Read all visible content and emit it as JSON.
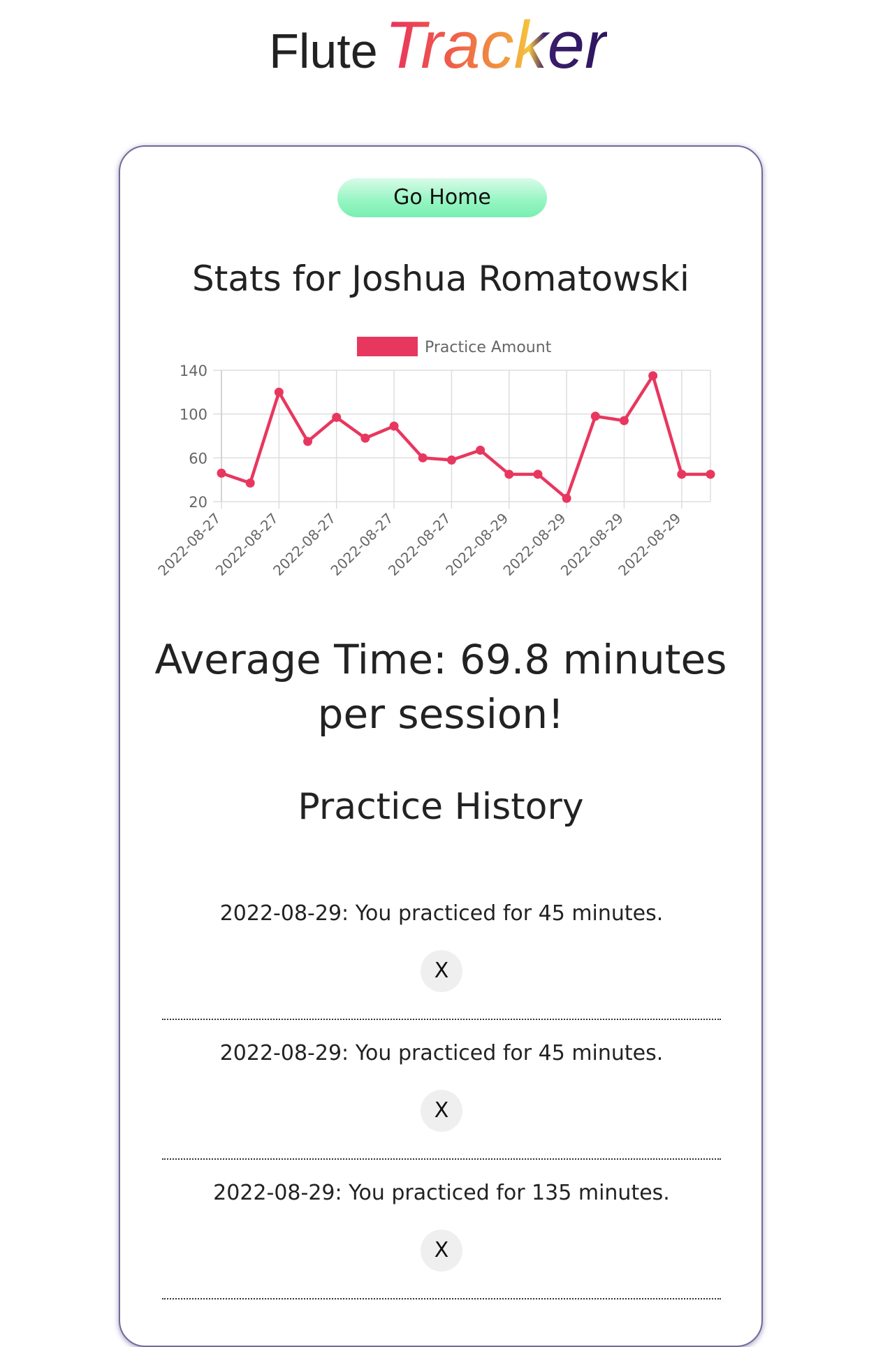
{
  "brand": {
    "part1": "Flute",
    "part2": "Tracker"
  },
  "nav": {
    "go_home_label": "Go Home"
  },
  "stats": {
    "title": "Stats for Joshua Romatowski",
    "average": "Average Time: 69.8 minutes per session!"
  },
  "chart_data": {
    "type": "line",
    "legend": [
      "Practice Amount"
    ],
    "legend_position": "top",
    "grid": true,
    "x": [
      "2022-08-27",
      "2022-08-27",
      "2022-08-27",
      "2022-08-27",
      "2022-08-27",
      "2022-08-27",
      "2022-08-27",
      "2022-08-27",
      "2022-08-27",
      "2022-08-27",
      "2022-08-29",
      "2022-08-29",
      "2022-08-29",
      "2022-08-29",
      "2022-08-29",
      "2022-08-29",
      "2022-08-29",
      "2022-08-29"
    ],
    "x_tick_labels": [
      "2022-08-27",
      "2022-08-27",
      "2022-08-27",
      "2022-08-27",
      "2022-08-27",
      "2022-08-29",
      "2022-08-29",
      "2022-08-29",
      "2022-08-29"
    ],
    "series": [
      {
        "name": "Practice Amount",
        "color": "#e8375f",
        "values": [
          46,
          37,
          120,
          75,
          97,
          78,
          89,
          60,
          58,
          67,
          45,
          45,
          23,
          98,
          94,
          135,
          45,
          45
        ]
      }
    ],
    "y_ticks": [
      20,
      60,
      100,
      140
    ],
    "ylim": [
      20,
      140
    ]
  },
  "history": {
    "title": "Practice History",
    "entries": [
      {
        "text": "2022-08-29: You practiced for 45 minutes.",
        "delete_label": "X"
      },
      {
        "text": "2022-08-29: You practiced for 45 minutes.",
        "delete_label": "X"
      },
      {
        "text": "2022-08-29: You practiced for 135 minutes.",
        "delete_label": "X"
      }
    ]
  }
}
